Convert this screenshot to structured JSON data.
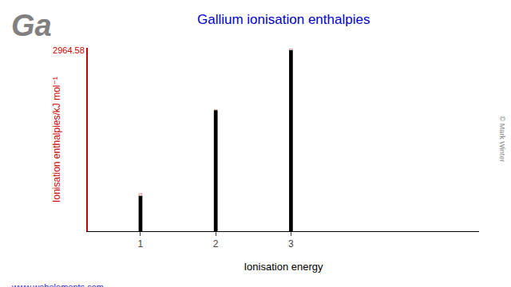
{
  "chart_data": {
    "type": "bar",
    "title": "Gallium ionisation enthalpies",
    "xlabel": "Ionisation energy",
    "ylabel": "Ionisation enthalpies/kJ mol⁻¹",
    "x": [
      1,
      2,
      3
    ],
    "values": [
      579,
      1979,
      2965
    ],
    "color": "#000000",
    "xlim": [
      0.3,
      5.5
    ],
    "xticks": [
      1,
      2,
      3
    ],
    "ylim": [
      0,
      3000
    ],
    "yticks": [
      2964.58
    ],
    "grid": false,
    "data_labels": true,
    "annotations": [
      "Ga",
      "www.webelements.com",
      "© Mark Winter"
    ]
  }
}
